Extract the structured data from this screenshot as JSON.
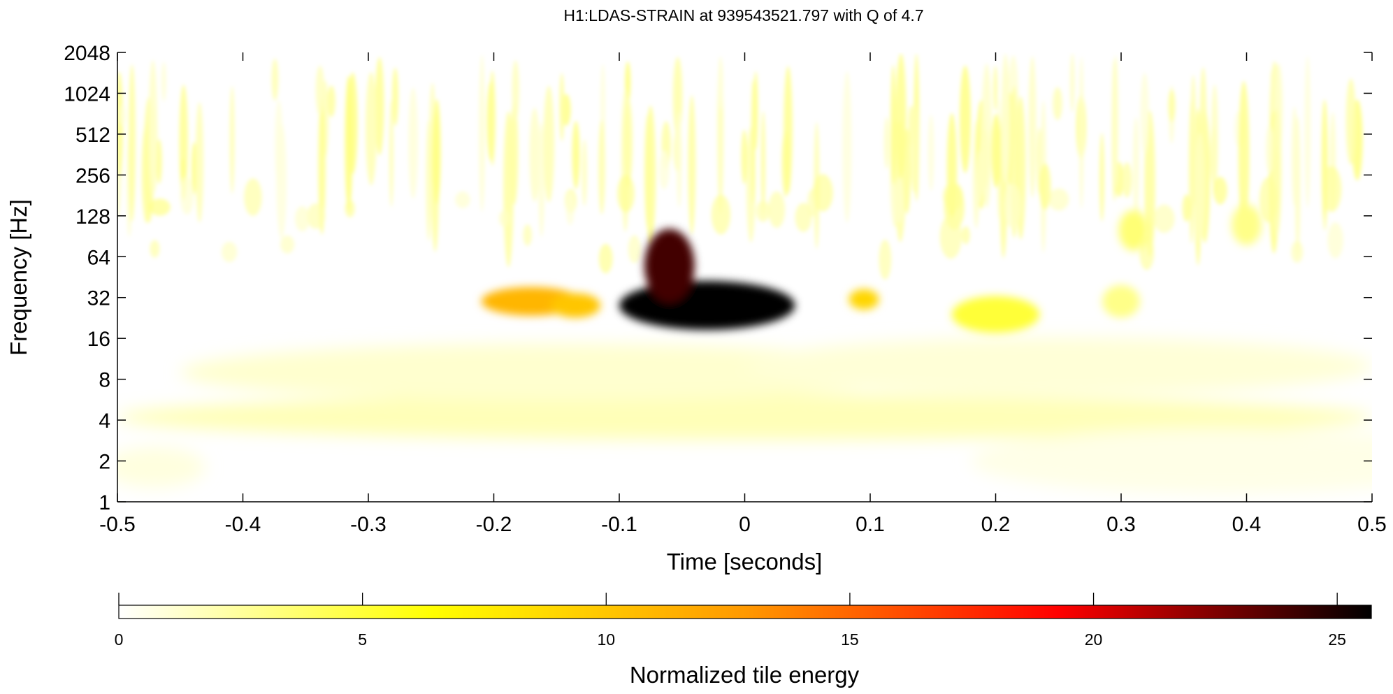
{
  "chart_data": {
    "type": "heatmap",
    "title": "H1:LDAS-STRAIN at 939543521.797 with Q of 4.7",
    "xlabel": "Time [seconds]",
    "ylabel": "Frequency [Hz]",
    "xlim": [
      -0.5,
      0.5
    ],
    "ylim": [
      1,
      2048
    ],
    "yscale": "log2",
    "x_ticks": [
      -0.5,
      -0.4,
      -0.3,
      -0.2,
      -0.1,
      0,
      0.1,
      0.2,
      0.3,
      0.4,
      0.5
    ],
    "x_tick_labels": [
      "-0.5",
      "-0.4",
      "-0.3",
      "-0.2",
      "-0.1",
      "0",
      "0.1",
      "0.2",
      "0.3",
      "0.4",
      "0.5"
    ],
    "y_ticks": [
      1,
      2,
      4,
      8,
      16,
      32,
      64,
      128,
      256,
      512,
      1024,
      2048
    ],
    "y_tick_labels": [
      "1",
      "2",
      "4",
      "8",
      "16",
      "32",
      "64",
      "128",
      "256",
      "512",
      "1024",
      "2048"
    ],
    "colorbar": {
      "label": "Normalized tile energy",
      "min": 0,
      "max": 25.7,
      "ticks": [
        0,
        5,
        10,
        15,
        20,
        25
      ],
      "tick_labels": [
        "0",
        "5",
        "10",
        "15",
        "20",
        "25"
      ],
      "colormap": [
        "#ffffff",
        "#ffff00",
        "#ff9900",
        "#ff0000",
        "#000000"
      ]
    },
    "energy_features": [
      {
        "time": -0.03,
        "freq": 28,
        "energy": 25.7,
        "dt": 0.07,
        "df_octaves": 0.6
      },
      {
        "time": -0.06,
        "freq": 55,
        "energy": 24,
        "dt": 0.02,
        "df_octaves": 0.9
      },
      {
        "time": -0.17,
        "freq": 30,
        "energy": 11,
        "dt": 0.04,
        "df_octaves": 0.35
      },
      {
        "time": -0.135,
        "freq": 28,
        "energy": 10,
        "dt": 0.02,
        "df_octaves": 0.3
      },
      {
        "time": 0.095,
        "freq": 31,
        "energy": 9,
        "dt": 0.012,
        "df_octaves": 0.25
      },
      {
        "time": 0.2,
        "freq": 24,
        "energy": 5,
        "dt": 0.035,
        "df_octaves": 0.45
      },
      {
        "time": 0.3,
        "freq": 30,
        "energy": 3,
        "dt": 0.015,
        "df_octaves": 0.4
      },
      {
        "time": 0.31,
        "freq": 100,
        "energy": 3.5,
        "dt": 0.012,
        "df_octaves": 0.5
      },
      {
        "time": 0.4,
        "freq": 110,
        "energy": 3,
        "dt": 0.012,
        "df_octaves": 0.5
      },
      {
        "time": 0.0,
        "freq": 4.2,
        "energy": 1.8,
        "dt": 0.5,
        "df_octaves": 0.55
      },
      {
        "time": -0.15,
        "freq": 9,
        "energy": 1.2,
        "dt": 0.3,
        "df_octaves": 0.7
      },
      {
        "time": 0.25,
        "freq": 10,
        "energy": 1.0,
        "dt": 0.25,
        "df_octaves": 0.7
      },
      {
        "time": 0.38,
        "freq": 2,
        "energy": 0.6,
        "dt": 0.2,
        "df_octaves": 0.8
      },
      {
        "time": -0.47,
        "freq": 1.8,
        "energy": 0.8,
        "dt": 0.04,
        "df_octaves": 0.5
      }
    ],
    "background": {
      "high_freq_min": 200,
      "high_freq_energy": 2.5
    }
  }
}
